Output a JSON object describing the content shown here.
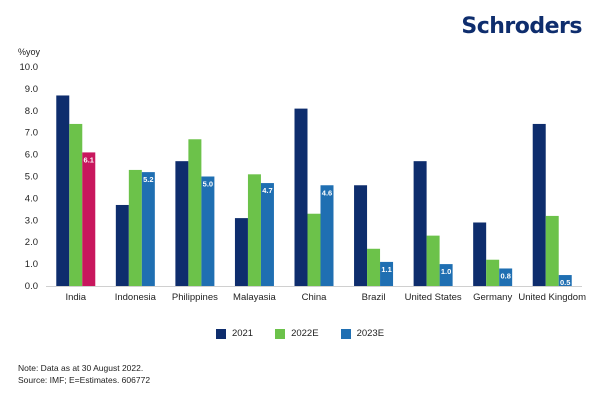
{
  "brand": {
    "logo_text": "Schroders"
  },
  "notes": {
    "line1": "Note: Data as at 30 August 2022.",
    "line2": "Source: IMF; E=Estimates. 606772"
  },
  "chart_data": {
    "type": "bar",
    "title": "",
    "xlabel": "",
    "ylabel": "%yoy",
    "ylim": [
      0,
      10
    ],
    "yticks": [
      "0.0",
      "1.0",
      "2.0",
      "3.0",
      "4.0",
      "5.0",
      "6.0",
      "7.0",
      "8.0",
      "9.0",
      "10.0"
    ],
    "grid": false,
    "legend_position": "bottom",
    "categories": [
      "India",
      "Indonesia",
      "Philippines",
      "Malayasia",
      "China",
      "Brazil",
      "United States",
      "Germany",
      "United Kingdom"
    ],
    "series": [
      {
        "name": "2021",
        "color": "#0e2d6d",
        "values": [
          8.7,
          3.7,
          5.7,
          3.1,
          8.1,
          4.6,
          5.7,
          2.9,
          7.4
        ]
      },
      {
        "name": "2022E",
        "color": "#6cc24a",
        "values": [
          7.4,
          5.3,
          6.7,
          5.1,
          3.3,
          1.7,
          2.3,
          1.2,
          3.2
        ]
      },
      {
        "name": "2023E",
        "color": "#1f6fb2",
        "values": [
          6.1,
          5.2,
          5.0,
          4.7,
          4.6,
          1.1,
          1.0,
          0.8,
          0.5
        ],
        "labels": [
          "6.1",
          "5.2",
          "5.0",
          "4.7",
          "4.6",
          "1.1",
          "1.0",
          "0.8",
          "0.5"
        ]
      }
    ],
    "highlight": {
      "category": "India",
      "series": "2023E",
      "color": "#c8175d"
    }
  }
}
